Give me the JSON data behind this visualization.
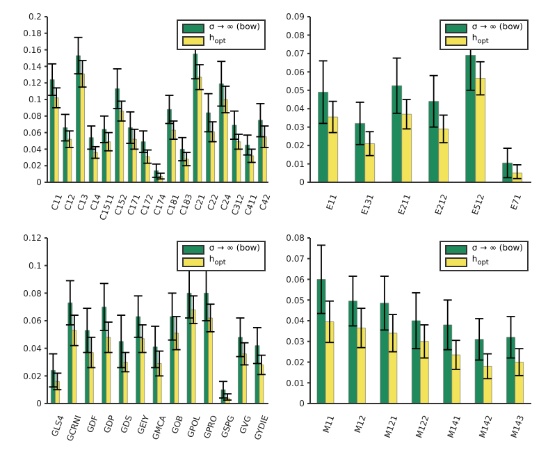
{
  "chart_data": [
    {
      "type": "bar",
      "categories": [
        "C11",
        "C12",
        "C13",
        "C14",
        "C1511",
        "C152",
        "C171",
        "C172",
        "C174",
        "C181",
        "C183",
        "C21",
        "C22",
        "C24",
        "C312",
        "C411",
        "C42"
      ],
      "ylim": [
        0,
        0.2
      ],
      "yticks": [
        0,
        0.02,
        0.04,
        0.06,
        0.08,
        0.1,
        0.12,
        0.14,
        0.16,
        0.18,
        0.2
      ],
      "legend": "top right",
      "series": [
        {
          "name": "σ → ∞ (bow)",
          "color": "#1f8a5c",
          "values": [
            0.124,
            0.066,
            0.153,
            0.054,
            0.064,
            0.113,
            0.066,
            0.049,
            0.014,
            0.088,
            0.04,
            0.155,
            0.084,
            0.119,
            0.069,
            0.045,
            0.075
          ],
          "errors": [
            0.019,
            0.016,
            0.022,
            0.014,
            0.016,
            0.024,
            0.019,
            0.013,
            0.008,
            0.017,
            0.014,
            0.03,
            0.023,
            0.027,
            0.017,
            0.012,
            0.02
          ]
        },
        {
          "name": "h$_{opt}$",
          "color": "#f2e35a",
          "values": [
            0.102,
            0.052,
            0.131,
            0.036,
            0.049,
            0.086,
            0.052,
            0.031,
            0.007,
            0.063,
            0.028,
            0.127,
            0.061,
            0.1,
            0.049,
            0.032,
            0.055
          ],
          "errors": [
            0.012,
            0.01,
            0.016,
            0.007,
            0.011,
            0.012,
            0.012,
            0.008,
            [
              0.004,
              0.011
            ],
            0.011,
            0.008,
            0.015,
            0.012,
            0.016,
            0.009,
            0.008,
            0.013
          ]
        }
      ]
    },
    {
      "type": "bar",
      "categories": [
        "E11",
        "E131",
        "E211",
        "E212",
        "E512",
        "E71"
      ],
      "ylim": [
        0,
        0.09
      ],
      "yticks": [
        0,
        0.01,
        0.02,
        0.03,
        0.04,
        0.05,
        0.06,
        0.07,
        0.08,
        0.09
      ],
      "legend": "top right",
      "series": [
        {
          "name": "σ → ∞ (bow)",
          "color": "#1f8a5c",
          "values": [
            0.049,
            0.032,
            0.0525,
            0.044,
            0.069,
            0.0105
          ],
          "errors": [
            0.017,
            0.0115,
            0.015,
            0.014,
            0.019,
            0.008
          ]
        },
        {
          "name": "h$_{opt}$",
          "color": "#f2e35a",
          "values": [
            0.0355,
            0.021,
            0.037,
            0.029,
            0.0565,
            0.005
          ],
          "errors": [
            0.0085,
            0.0065,
            0.008,
            0.0075,
            0.009,
            [
              0.002,
              0.0095
            ]
          ]
        }
      ]
    },
    {
      "type": "bar",
      "categories": [
        "GLS4",
        "GCRNI",
        "GDF",
        "GDP",
        "GDS",
        "GEIY",
        "GMCA",
        "GOB",
        "GPOL",
        "GPRO",
        "GSPG",
        "GVG",
        "GYDIE"
      ],
      "ylim": [
        0,
        0.12
      ],
      "yticks": [
        0,
        0.02,
        0.04,
        0.06,
        0.08,
        0.1,
        0.12
      ],
      "legend": "top right",
      "series": [
        {
          "name": "σ → ∞ (bow)",
          "color": "#1f8a5c",
          "values": [
            0.024,
            0.073,
            0.053,
            0.07,
            0.045,
            0.063,
            0.041,
            0.063,
            0.08,
            0.08,
            0.01,
            0.048,
            0.042
          ],
          "errors": [
            0.012,
            0.016,
            0.016,
            0.017,
            0.019,
            0.015,
            0.015,
            0.017,
            0.018,
            0.02,
            0.006,
            0.014,
            0.013
          ]
        },
        {
          "name": "h$_{opt}$",
          "color": "#f2e35a",
          "values": [
            0.016,
            0.053,
            0.037,
            0.048,
            0.03,
            0.047,
            0.029,
            0.051,
            0.068,
            0.062,
            0.004,
            0.036,
            0.028
          ],
          "errors": [
            0.006,
            0.011,
            0.011,
            0.011,
            0.007,
            0.01,
            0.009,
            0.012,
            0.01,
            0.01,
            [
              0.0025,
              0.007
            ],
            0.008,
            0.007
          ]
        }
      ]
    },
    {
      "type": "bar",
      "categories": [
        "M11",
        "M12",
        "M121",
        "M122",
        "M141",
        "M142",
        "M143"
      ],
      "ylim": [
        0,
        0.08
      ],
      "yticks": [
        0,
        0.01,
        0.02,
        0.03,
        0.04,
        0.05,
        0.06,
        0.07,
        0.08
      ],
      "legend": "top right",
      "series": [
        {
          "name": "σ → ∞ (bow)",
          "color": "#1f8a5c",
          "values": [
            0.06,
            0.0495,
            0.0485,
            0.04,
            0.038,
            0.031,
            0.032
          ],
          "errors": [
            0.0165,
            0.012,
            0.013,
            0.0135,
            0.012,
            0.01,
            0.01
          ]
        },
        {
          "name": "h$_{opt}$",
          "color": "#f2e35a",
          "values": [
            0.0395,
            0.0365,
            0.034,
            0.03,
            0.0235,
            0.018,
            0.02
          ],
          "errors": [
            0.01,
            0.0095,
            0.009,
            0.008,
            0.007,
            0.006,
            0.0065
          ]
        }
      ]
    }
  ]
}
